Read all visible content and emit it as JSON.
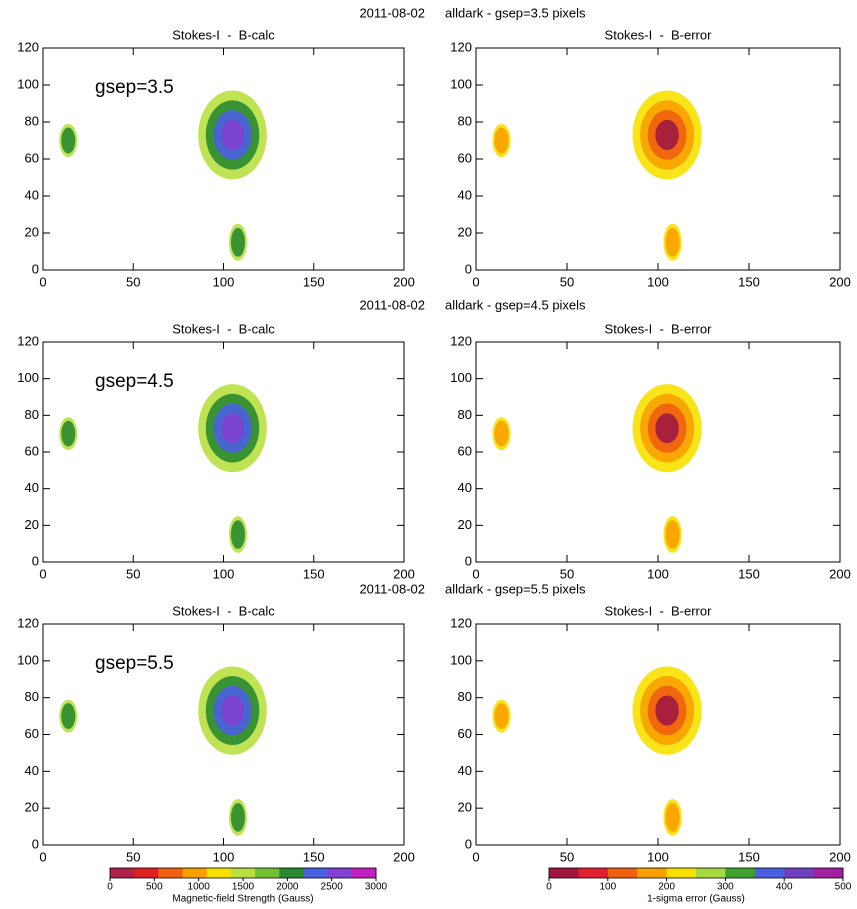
{
  "headers": [
    {
      "date": "2011-08-02",
      "text": "alldark - gsep=3.5 pixels"
    },
    {
      "date": "2011-08-02",
      "text": "alldark - gsep=4.5 pixels"
    },
    {
      "date": "2011-08-02",
      "text": "alldark - gsep=5.5 pixels"
    }
  ],
  "chart_data": [
    {
      "type": "heatmap",
      "title": "Stokes-I  -  B-calc",
      "annotation": "gsep=3.5",
      "xlim": [
        0,
        200
      ],
      "ylim": [
        0,
        120
      ],
      "xticks": [
        0,
        50,
        100,
        150,
        200
      ],
      "yticks": [
        0,
        20,
        40,
        60,
        80,
        100,
        120
      ]
    },
    {
      "type": "heatmap",
      "title": "Stokes-I  -  B-error",
      "xlim": [
        0,
        200
      ],
      "ylim": [
        0,
        120
      ],
      "xticks": [
        0,
        50,
        100,
        150,
        200
      ],
      "yticks": [
        0,
        20,
        40,
        60,
        80,
        100,
        120
      ]
    },
    {
      "type": "heatmap",
      "title": "Stokes-I  -  B-calc",
      "annotation": "gsep=4.5",
      "xlim": [
        0,
        200
      ],
      "ylim": [
        0,
        120
      ],
      "xticks": [
        0,
        50,
        100,
        150,
        200
      ],
      "yticks": [
        0,
        20,
        40,
        60,
        80,
        100,
        120
      ]
    },
    {
      "type": "heatmap",
      "title": "Stokes-I  -  B-error",
      "xlim": [
        0,
        200
      ],
      "ylim": [
        0,
        120
      ],
      "xticks": [
        0,
        50,
        100,
        150,
        200
      ],
      "yticks": [
        0,
        20,
        40,
        60,
        80,
        100,
        120
      ]
    },
    {
      "type": "heatmap",
      "title": "Stokes-I  -  B-calc",
      "annotation": "gsep=5.5",
      "xlim": [
        0,
        200
      ],
      "ylim": [
        0,
        120
      ],
      "xticks": [
        0,
        50,
        100,
        150,
        200
      ],
      "yticks": [
        0,
        20,
        40,
        60,
        80,
        100,
        120
      ]
    },
    {
      "type": "heatmap",
      "title": "Stokes-I  -  B-error",
      "xlim": [
        0,
        200
      ],
      "ylim": [
        0,
        120
      ],
      "xticks": [
        0,
        50,
        100,
        150,
        200
      ],
      "yticks": [
        0,
        20,
        40,
        60,
        80,
        100,
        120
      ]
    }
  ],
  "colorbars": [
    {
      "label": "Magnetic-field Strength (Gauss)",
      "lim": [
        0,
        3000
      ],
      "ticks": [
        0,
        500,
        1000,
        1500,
        2000,
        2500,
        3000
      ],
      "colors": [
        "#b0204a",
        "#e02020",
        "#f06010",
        "#f8a000",
        "#f8e000",
        "#b8e040",
        "#70c030",
        "#2a8a30",
        "#4a60e0",
        "#8040d0",
        "#c020c0"
      ]
    },
    {
      "label": "1-sigma error (Gauss)",
      "lim": [
        0,
        500
      ],
      "ticks": [
        0,
        100,
        200,
        300,
        400,
        500
      ],
      "colors": [
        "#a01840",
        "#e02030",
        "#f06010",
        "#f8a000",
        "#f8e000",
        "#a8d840",
        "#40a030",
        "#4a60e0",
        "#7040c0",
        "#a020a0"
      ]
    }
  ]
}
